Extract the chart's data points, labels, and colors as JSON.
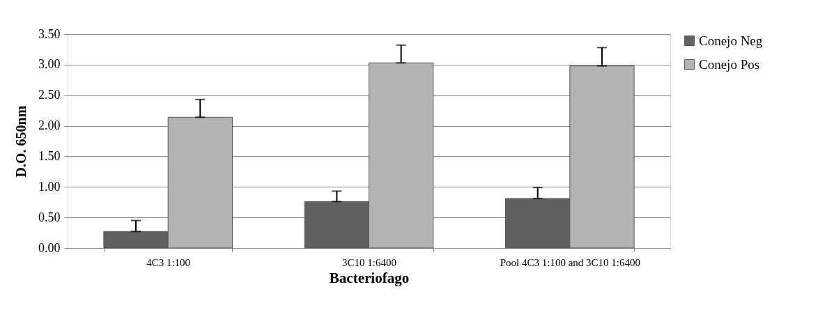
{
  "chart_data": {
    "type": "bar",
    "xlabel": "Bacteriofago",
    "ylabel": "D.O. 650nm",
    "categories": [
      "4C3 1:100",
      "3C10 1:6400",
      "Pool 4C3 1:100 and 3C10 1:6400"
    ],
    "series": [
      {
        "name": "Conejo Neg",
        "color": "#606060",
        "values": [
          0.27,
          0.76,
          0.81
        ],
        "errors": [
          [
            0.27,
            0.45
          ],
          [
            0.76,
            0.93
          ],
          [
            0.81,
            0.99
          ]
        ]
      },
      {
        "name": "Conejo Pos",
        "color": "#b3b3b3",
        "values": [
          2.14,
          3.03,
          2.98
        ],
        "errors": [
          [
            2.14,
            2.43
          ],
          [
            3.03,
            3.32
          ],
          [
            2.98,
            3.28
          ]
        ]
      }
    ],
    "ylim": [
      0,
      3.5
    ],
    "yticks": [
      {
        "value": 0,
        "label": "0.00"
      },
      {
        "value": 0.5,
        "label": "0.50"
      },
      {
        "value": 1,
        "label": "1.00"
      },
      {
        "value": 1.5,
        "label": "1.50"
      },
      {
        "value": 2,
        "label": "2.00"
      },
      {
        "value": 2.5,
        "label": "2.50"
      },
      {
        "value": 3,
        "label": "3.00"
      },
      {
        "value": 3.5,
        "label": "3.50"
      }
    ],
    "grid": "y",
    "legend": "right"
  }
}
